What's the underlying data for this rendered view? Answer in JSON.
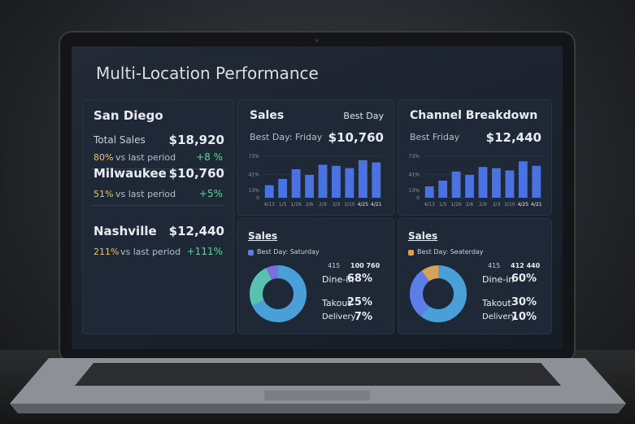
{
  "title": "Multi-Location Performance",
  "locations": [
    {
      "name": "San Diego",
      "metric": "Total Sales",
      "value": "$18,920",
      "pct": "80%",
      "compare": "vs last period",
      "change": "+8 %"
    },
    {
      "name": "Milwaukee",
      "value": "$10,760",
      "pct": "51%",
      "compare": "vs last period",
      "change": "+5%"
    },
    {
      "name": "Nashville",
      "value": "$12,440",
      "pct": "211%",
      "compare": "vs last period",
      "change": "+111%"
    }
  ],
  "bar_cards": [
    {
      "title": "Sales",
      "badge": "Best Day",
      "subtitle": "Best Day: Friday",
      "amount": "$10,760",
      "categories": [
        "4/13",
        "1/5",
        "1/26",
        "2/6",
        "2/9",
        "3/3",
        "3/10",
        "4/25",
        "4/21"
      ],
      "values": [
        22,
        33,
        50,
        40,
        58,
        56,
        52,
        66,
        62
      ],
      "color": "#4a72e0",
      "ylim": [
        0,
        80
      ],
      "yticks": [
        {
          "value": 0,
          "label": "0"
        },
        {
          "value": 13,
          "label": "13%"
        },
        {
          "value": 41,
          "label": "41%"
        },
        {
          "value": 73,
          "label": "73%"
        }
      ]
    },
    {
      "title": "Channel Breakdown",
      "subtitle": "Best Friday",
      "amount": "$12,440",
      "categories": [
        "4/13",
        "1/5",
        "1/26",
        "2/6",
        "2/9",
        "3/3",
        "3/10",
        "4/25",
        "4/21"
      ],
      "values": [
        20,
        30,
        46,
        40,
        54,
        52,
        48,
        64,
        56
      ],
      "color": "#4a72e0",
      "ylim": [
        0,
        80
      ],
      "yticks": [
        {
          "value": 0,
          "label": "0"
        },
        {
          "value": 13,
          "label": "13%"
        },
        {
          "value": 41,
          "label": "41%"
        },
        {
          "value": 73,
          "label": "73%"
        }
      ]
    }
  ],
  "donut_cards": [
    {
      "title": "Sales",
      "subtitle": "Best Day: Saturday",
      "legend_color": "#5b7fe6",
      "count": "415",
      "total": "100 760",
      "segments": [
        {
          "name": "Dine-in",
          "value": 68,
          "label": "68%",
          "color": "#4b9fd8"
        },
        {
          "name": "Takout",
          "value": 25,
          "label": "25%",
          "color": "#58c2b0"
        },
        {
          "name": "Delivery",
          "value": 7,
          "label": "7%",
          "color": "#7d6ee0"
        }
      ]
    },
    {
      "title": "Sales",
      "subtitle": "Best Day: Seaterday",
      "legend_color": "#e59a55",
      "count": "415",
      "total": "412 440",
      "segments": [
        {
          "name": "Dine-in",
          "value": 60,
          "label": "60%",
          "color": "#4b9fd8"
        },
        {
          "name": "Takout",
          "value": 30,
          "label": "30%",
          "color": "#5d7ee8"
        },
        {
          "name": "Delivery",
          "value": 10,
          "label": "10%",
          "color": "#d9a25a"
        }
      ]
    }
  ]
}
